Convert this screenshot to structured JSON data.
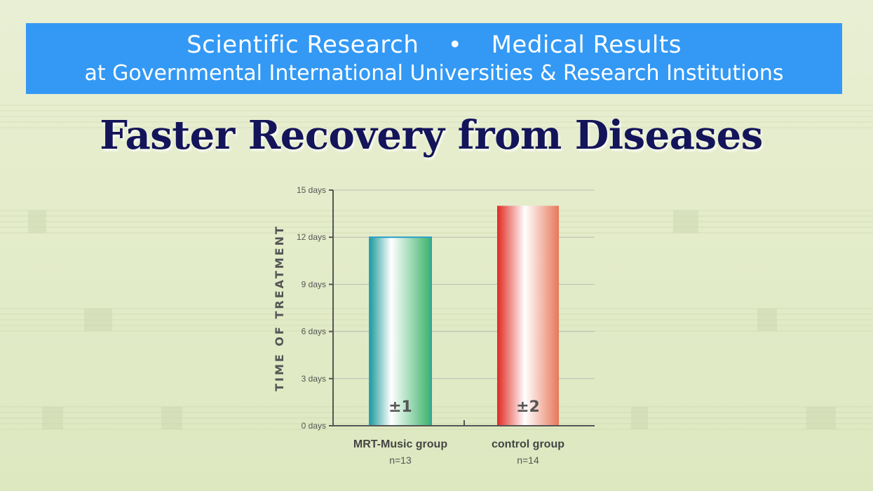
{
  "banner": {
    "line1_left": "Scientific Research",
    "line1_sep": "•",
    "line1_right": "Medical Results",
    "line2": "at Governmental International Universities & Research Institutions"
  },
  "title": "Faster Recovery from Diseases",
  "colors": {
    "banner": "#3399f5",
    "title": "#14145a",
    "mrt_bar": "#3bb07a",
    "control_bar": "#e8402e"
  },
  "chart_data": {
    "type": "bar",
    "ylabel": "TIME OF TREATMENT",
    "yticks": [
      "0 days",
      "3 days",
      "6 days",
      "9 days",
      "12 days",
      "15 days"
    ],
    "ylim": [
      0,
      15
    ],
    "grid": true,
    "categories": [
      "MRT-Music group",
      "control group"
    ],
    "sample_sizes": [
      "n=13",
      "n=14"
    ],
    "values": [
      12,
      14
    ],
    "errors": [
      "±1",
      "±2"
    ]
  }
}
